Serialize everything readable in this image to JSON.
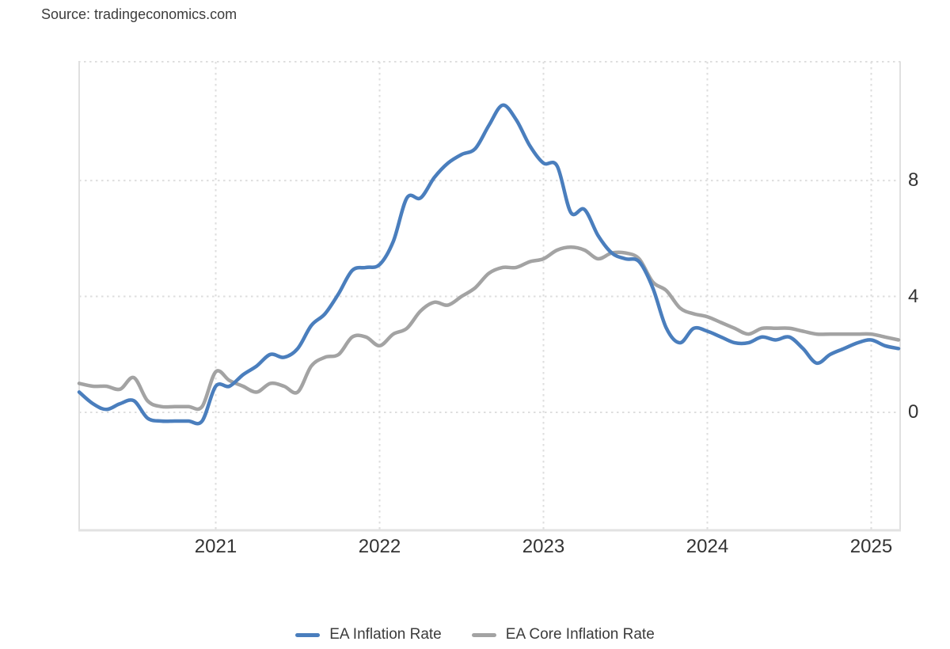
{
  "source_label": "Source: tradingeconomics.com",
  "colors": {
    "axis_text": "#333333",
    "grid": "#dedede",
    "border": "#e0e0e0",
    "border_bottom": "#e2e2e2",
    "source_text": "#3c3c3c",
    "headline_line": "#4a7ebd",
    "core_line": "#a3a3a3"
  },
  "legend": {
    "items": [
      {
        "label": "EA Inflation Rate"
      },
      {
        "label": "EA Core Inflation Rate"
      }
    ]
  },
  "chart_data": {
    "type": "line",
    "title": "",
    "xlabel": "",
    "ylabel": "",
    "x_unit": "month",
    "x_start": "2020-03",
    "x_end": "2025-03",
    "xticks": [
      "2021",
      "2022",
      "2023",
      "2024",
      "2025"
    ],
    "yticks": [
      8,
      4,
      0
    ],
    "ylim": [
      -4.07,
      12.1
    ],
    "grid": "dotted",
    "legend_position": "bottom",
    "series": [
      {
        "name": "EA Inflation Rate",
        "color": "#4a7ebd",
        "values": [
          0.7,
          0.3,
          0.1,
          0.3,
          0.4,
          -0.2,
          -0.3,
          -0.3,
          -0.3,
          -0.3,
          0.9,
          0.9,
          1.3,
          1.6,
          2.0,
          1.9,
          2.2,
          3.0,
          3.4,
          4.1,
          4.9,
          5.0,
          5.1,
          5.9,
          7.4,
          7.4,
          8.1,
          8.6,
          8.9,
          9.1,
          9.9,
          10.6,
          10.1,
          9.2,
          8.6,
          8.5,
          6.9,
          7.0,
          6.1,
          5.5,
          5.3,
          5.2,
          4.3,
          2.9,
          2.4,
          2.9,
          2.8,
          2.6,
          2.4,
          2.4,
          2.6,
          2.5,
          2.6,
          2.2,
          1.7,
          2.0,
          2.2,
          2.4,
          2.5,
          2.3,
          2.2
        ]
      },
      {
        "name": "EA Core Inflation Rate",
        "color": "#a3a3a3",
        "values": [
          1.0,
          0.9,
          0.9,
          0.8,
          1.2,
          0.4,
          0.2,
          0.2,
          0.2,
          0.2,
          1.4,
          1.1,
          0.9,
          0.7,
          1.0,
          0.9,
          0.7,
          1.6,
          1.9,
          2.0,
          2.6,
          2.6,
          2.3,
          2.7,
          2.9,
          3.5,
          3.8,
          3.7,
          4.0,
          4.3,
          4.8,
          5.0,
          5.0,
          5.2,
          5.3,
          5.6,
          5.7,
          5.6,
          5.3,
          5.5,
          5.5,
          5.3,
          4.5,
          4.2,
          3.6,
          3.4,
          3.3,
          3.1,
          2.9,
          2.7,
          2.9,
          2.9,
          2.9,
          2.8,
          2.7,
          2.7,
          2.7,
          2.7,
          2.7,
          2.6,
          2.5
        ]
      }
    ]
  }
}
